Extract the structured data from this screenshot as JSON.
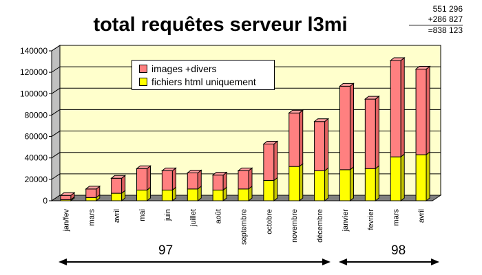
{
  "title": "total requêtes serveur l3mi",
  "summation": {
    "line1": "551 296",
    "line2": "+286 827",
    "line3": "=838 123"
  },
  "colors": {
    "images": "#ff8080",
    "html": "#ffff00",
    "wall": "#ffffcc",
    "floor": "#808080"
  },
  "chart_data": {
    "type": "bar",
    "stacked": true,
    "title": "total requêtes serveur l3mi",
    "categories": [
      "jan/fev",
      "mars",
      "avril",
      "mai",
      "juin",
      "juillet",
      "août",
      "septembre",
      "octobre",
      "novembre",
      "décembre",
      "janvier",
      "fevrier",
      "mars",
      "avril"
    ],
    "series": [
      {
        "name": "fichiers html uniquement",
        "values": [
          1000,
          3000,
          7000,
          10000,
          10000,
          11000,
          10000,
          11000,
          19000,
          32000,
          28000,
          29000,
          30000,
          41000,
          43000
        ]
      },
      {
        "name": "images +divers",
        "values": [
          4000,
          8000,
          14000,
          20000,
          18000,
          15000,
          14000,
          17000,
          34000,
          50000,
          46000,
          78000,
          65000,
          90000,
          80000
        ]
      }
    ],
    "ylim": [
      0,
      140000
    ],
    "yticks": [
      "0",
      "20000",
      "40000",
      "60000",
      "80000",
      "100000",
      "120000",
      "140000"
    ],
    "grid": true,
    "legend_position": "top-center",
    "year_groups": [
      {
        "label": "97",
        "from": "jan/fev",
        "to": "décembre"
      },
      {
        "label": "98",
        "from": "janvier",
        "to": "avril"
      }
    ]
  }
}
